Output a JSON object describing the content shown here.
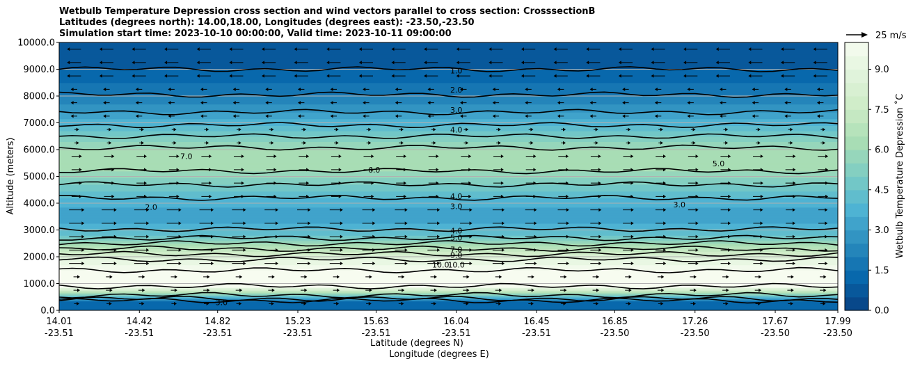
{
  "chart_data": {
    "type": "heatmap",
    "title_lines": [
      "Wetbulb Temperature Depression cross section and wind vectors parallel to cross section: CrosssectionB",
      "Latitudes (degrees north): 14.00,18.00, Longitudes (degrees east): -23.50,-23.50",
      "Simulation start time: 2023-10-10 00:00:00, Valid time: 2023-10-11 09:00:00"
    ],
    "ylabel": "Altitude (meters)",
    "xlabel_lat": "Latitude (degrees N)",
    "xlabel_lon": "Longitude (degrees E)",
    "ylim": [
      0,
      10000
    ],
    "xlim": [
      14.01,
      17.99
    ],
    "y_ticks": [
      "0.0",
      "1000.0",
      "2000.0",
      "3000.0",
      "4000.0",
      "5000.0",
      "6000.0",
      "7000.0",
      "8000.0",
      "9000.0",
      "10000.0"
    ],
    "y_tick_values": [
      0,
      1000,
      2000,
      3000,
      4000,
      5000,
      6000,
      7000,
      8000,
      9000,
      10000
    ],
    "x_tick_positions": [
      14.01,
      14.42,
      14.82,
      15.23,
      15.63,
      16.04,
      16.45,
      16.85,
      17.26,
      17.67,
      17.99
    ],
    "x_ticks_lat": [
      "14.01",
      "14.42",
      "14.82",
      "15.23",
      "15.63",
      "16.04",
      "16.45",
      "16.85",
      "17.26",
      "17.67",
      "17.99"
    ],
    "x_ticks_lon": [
      "-23.51",
      "-23.51",
      "-23.51",
      "-23.51",
      "-23.51",
      "-23.51",
      "-23.51",
      "-23.50",
      "-23.50",
      "-23.50",
      "-23.50"
    ],
    "colorbar": {
      "label": "Wetbulb Temperature Depression ˚C",
      "range": [
        0,
        10
      ],
      "ticks": [
        "0.0",
        "1.5",
        "3.0",
        "4.5",
        "6.0",
        "7.5",
        "9.0"
      ],
      "tick_values": [
        0,
        1.5,
        3.0,
        4.5,
        6.0,
        7.5,
        9.0
      ]
    },
    "colormap": [
      "#084081",
      "#0868ac",
      "#2b8cbe",
      "#4eb3d3",
      "#7bccc4",
      "#a8ddb5",
      "#ccebc5",
      "#e0f3db",
      "#f7fcf0"
    ],
    "vector_key_label": "25 m/s",
    "vertical_profile": [
      {
        "z": 0,
        "v": 1.0
      },
      {
        "z": 300,
        "v": 1.0
      },
      {
        "z": 500,
        "v": 4.0
      },
      {
        "z": 900,
        "v": 10.0
      },
      {
        "z": 1500,
        "v": 10.0
      },
      {
        "z": 1900,
        "v": 9.0
      },
      {
        "z": 2300,
        "v": 7.0
      },
      {
        "z": 2800,
        "v": 4.5
      },
      {
        "z": 3400,
        "v": 3.2
      },
      {
        "z": 4000,
        "v": 3.6
      },
      {
        "z": 4600,
        "v": 4.8
      },
      {
        "z": 5300,
        "v": 6.2
      },
      {
        "z": 5900,
        "v": 6.4
      },
      {
        "z": 6500,
        "v": 5.0
      },
      {
        "z": 7000,
        "v": 3.8
      },
      {
        "z": 7600,
        "v": 2.6
      },
      {
        "z": 8200,
        "v": 1.8
      },
      {
        "z": 9000,
        "v": 1.0
      },
      {
        "z": 9800,
        "v": 0.6
      },
      {
        "z": 10000,
        "v": 0.5
      }
    ],
    "contour_labels": [
      {
        "text": "1.0",
        "x": 16.04,
        "z": 8950
      },
      {
        "text": "2.0",
        "x": 16.04,
        "z": 8240
      },
      {
        "text": "3.0",
        "x": 16.04,
        "z": 7480
      },
      {
        "text": "4.0",
        "x": 16.04,
        "z": 6740
      },
      {
        "text": "6.0",
        "x": 15.62,
        "z": 5250
      },
      {
        "text": "7.0",
        "x": 14.66,
        "z": 5750
      },
      {
        "text": "4.0",
        "x": 16.04,
        "z": 4260
      },
      {
        "text": "3.0",
        "x": 16.04,
        "z": 3880
      },
      {
        "text": "4.0",
        "x": 16.04,
        "z": 2980
      },
      {
        "text": "5.0",
        "x": 16.04,
        "z": 2720
      },
      {
        "text": "7.0",
        "x": 16.04,
        "z": 2270
      },
      {
        "text": "9.0",
        "x": 16.04,
        "z": 2060
      },
      {
        "text": "10.0",
        "x": 16.04,
        "z": 1700
      },
      {
        "text": "10.0",
        "x": 15.96,
        "z": 1700
      },
      {
        "text": "3.0",
        "x": 14.84,
        "z": 300
      },
      {
        "text": "2.0",
        "x": 14.48,
        "z": 3860
      },
      {
        "text": "5.0",
        "x": 17.38,
        "z": 5480
      },
      {
        "text": "3.0",
        "x": 17.18,
        "z": 3950
      }
    ]
  }
}
